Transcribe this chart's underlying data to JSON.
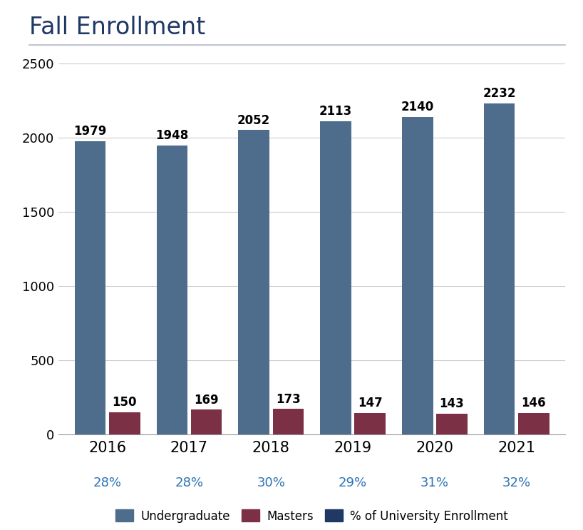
{
  "title": "Fall Enrollment",
  "years": [
    "2016",
    "2017",
    "2018",
    "2019",
    "2020",
    "2021"
  ],
  "undergrad": [
    1979,
    1948,
    2052,
    2113,
    2140,
    2232
  ],
  "masters": [
    150,
    169,
    173,
    147,
    143,
    146
  ],
  "percentages": [
    "28%",
    "28%",
    "30%",
    "29%",
    "31%",
    "32%"
  ],
  "undergrad_color": "#4e6d8c",
  "masters_color": "#7b3045",
  "pct_legend_color": "#1f3864",
  "title_color": "#1f3864",
  "pct_text_color": "#2e74b5",
  "ylim": [
    0,
    2500
  ],
  "yticks": [
    0,
    500,
    1000,
    1500,
    2000,
    2500
  ],
  "background_color": "#ffffff",
  "bar_width": 0.38,
  "bar_gap": 0.04,
  "legend_labels": [
    "Undergraduate",
    "Masters",
    "% of University Enrollment"
  ]
}
